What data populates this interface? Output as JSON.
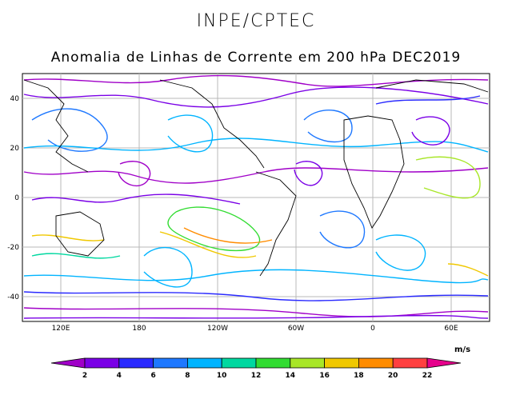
{
  "header": {
    "org": "INPE/CPTEC"
  },
  "title": "Anomalia de Linhas de Corrente em 200 hPa DEC2019",
  "axes": {
    "lat_ticks": [
      "40",
      "20",
      "0",
      "-20",
      "-40"
    ],
    "lon_ticks": [
      "120E",
      "180",
      "120W",
      "60W",
      "0",
      "60E"
    ]
  },
  "colorbar": {
    "units": "m/s",
    "ticks": [
      "2",
      "4",
      "6",
      "8",
      "10",
      "12",
      "14",
      "16",
      "18",
      "20",
      "22"
    ],
    "colors": [
      "#a000c8",
      "#7a00e6",
      "#2a2aff",
      "#1e78ff",
      "#00b4ff",
      "#00d8a0",
      "#32dc32",
      "#a8e628",
      "#f0c800",
      "#ff8c00",
      "#ff4040",
      "#e6008c"
    ]
  }
}
